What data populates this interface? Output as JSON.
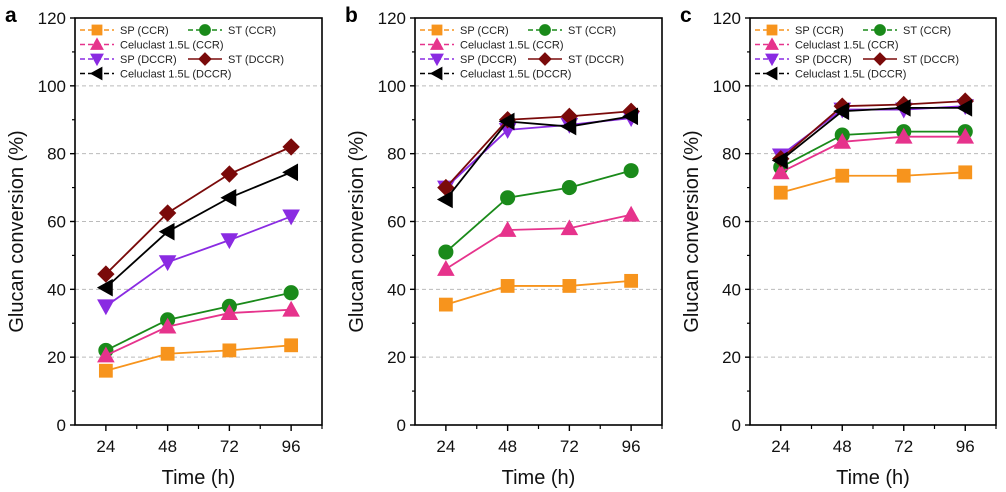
{
  "chart_data": [
    {
      "type": "line",
      "panel_label": "a",
      "xlabel": "Time (h)",
      "ylabel": "Glucan conversion (%)",
      "x": [
        24,
        48,
        72,
        96
      ],
      "xlim": [
        12,
        108
      ],
      "ylim": [
        0,
        120
      ],
      "xticks": [
        24,
        48,
        72,
        96
      ],
      "yticks": [
        0,
        20,
        40,
        60,
        80,
        100,
        120
      ],
      "grid": "horizontal dashed",
      "legend": "top-left",
      "series": [
        {
          "name": "SP (CCR)",
          "marker": "square",
          "color": "#f7941d",
          "values": [
            16,
            21,
            22,
            23.5
          ]
        },
        {
          "name": "ST (CCR)",
          "marker": "circle",
          "color": "#1a8a1a",
          "values": [
            22,
            31,
            35,
            39
          ]
        },
        {
          "name": "Celuclast 1.5L (CCR)",
          "marker": "triangle-up",
          "color": "#e6338c",
          "values": [
            20.5,
            29,
            33,
            34
          ]
        },
        {
          "name": "SP (DCCR)",
          "marker": "triangle-down",
          "color": "#8a2be2",
          "values": [
            35,
            48,
            54.5,
            61.5
          ]
        },
        {
          "name": "ST (DCCR)",
          "marker": "diamond",
          "color": "#7a0a0a",
          "values": [
            44.5,
            62.5,
            74,
            82
          ]
        },
        {
          "name": "Celuclast 1.5L (DCCR)",
          "marker": "triangle-left",
          "color": "#000000",
          "values": [
            40.5,
            57,
            67,
            74.5
          ]
        }
      ]
    },
    {
      "type": "line",
      "panel_label": "b",
      "xlabel": "Time (h)",
      "ylabel": "Glucan conversion (%)",
      "x": [
        24,
        48,
        72,
        96
      ],
      "xlim": [
        12,
        108
      ],
      "ylim": [
        0,
        120
      ],
      "xticks": [
        24,
        48,
        72,
        96
      ],
      "yticks": [
        0,
        20,
        40,
        60,
        80,
        100,
        120
      ],
      "grid": "horizontal dashed",
      "legend": "top-left",
      "series": [
        {
          "name": "SP (CCR)",
          "marker": "square",
          "color": "#f7941d",
          "values": [
            35.5,
            41,
            41,
            42.5
          ]
        },
        {
          "name": "ST (CCR)",
          "marker": "circle",
          "color": "#1a8a1a",
          "values": [
            51,
            67,
            70,
            75
          ]
        },
        {
          "name": "Celuclast 1.5L (CCR)",
          "marker": "triangle-up",
          "color": "#e6338c",
          "values": [
            46,
            57.5,
            58,
            62
          ]
        },
        {
          "name": "SP (DCCR)",
          "marker": "triangle-down",
          "color": "#8a2be2",
          "values": [
            70,
            87,
            88.5,
            90.5
          ]
        },
        {
          "name": "ST (DCCR)",
          "marker": "diamond",
          "color": "#7a0a0a",
          "values": [
            70,
            90,
            91,
            92.5
          ]
        },
        {
          "name": "Celuclast 1.5L (DCCR)",
          "marker": "triangle-left",
          "color": "#000000",
          "values": [
            66.5,
            89.5,
            88,
            91
          ]
        }
      ]
    },
    {
      "type": "line",
      "panel_label": "c",
      "xlabel": "Time (h)",
      "ylabel": "Glucan conversion (%)",
      "x": [
        24,
        48,
        72,
        96
      ],
      "xlim": [
        12,
        108
      ],
      "ylim": [
        0,
        120
      ],
      "xticks": [
        24,
        48,
        72,
        96
      ],
      "yticks": [
        0,
        20,
        40,
        60,
        80,
        100,
        120
      ],
      "grid": "horizontal dashed",
      "legend": "top-left",
      "series": [
        {
          "name": "SP (CCR)",
          "marker": "square",
          "color": "#f7941d",
          "values": [
            68.5,
            73.5,
            73.5,
            74.5
          ]
        },
        {
          "name": "ST (CCR)",
          "marker": "circle",
          "color": "#1a8a1a",
          "values": [
            76,
            85.5,
            86.5,
            86.5
          ]
        },
        {
          "name": "Celuclast 1.5L (CCR)",
          "marker": "triangle-up",
          "color": "#e6338c",
          "values": [
            74.5,
            83.5,
            85,
            85
          ]
        },
        {
          "name": "SP (DCCR)",
          "marker": "triangle-down",
          "color": "#8a2be2",
          "values": [
            79.5,
            93,
            93,
            94
          ]
        },
        {
          "name": "ST (DCCR)",
          "marker": "diamond",
          "color": "#7a0a0a",
          "values": [
            78.5,
            94,
            94.5,
            95.5
          ]
        },
        {
          "name": "Celuclast 1.5L (DCCR)",
          "marker": "triangle-left",
          "color": "#000000",
          "values": [
            78,
            92.5,
            93.5,
            93.5
          ]
        }
      ]
    }
  ]
}
